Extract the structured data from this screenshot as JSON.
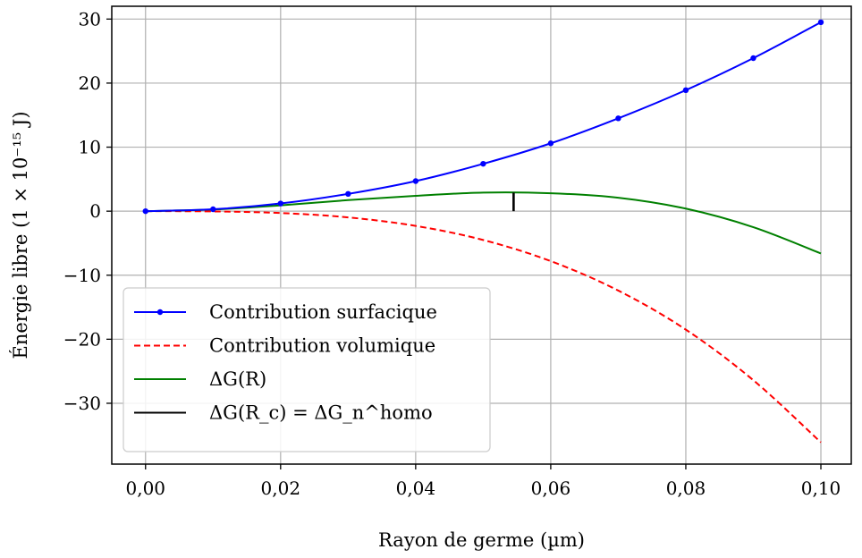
{
  "chart_data": {
    "type": "line",
    "xlabel": "Rayon de germe (µm)",
    "ylabel": "Énergie libre (1 × 10⁻¹⁵ J)",
    "xlim": [
      -0.005,
      0.1045
    ],
    "ylim": [
      -39.5,
      32
    ],
    "grid": true,
    "legend_placement": "lower-left",
    "x_ticks": [
      0.0,
      0.02,
      0.04,
      0.06,
      0.08,
      0.1
    ],
    "x_tick_labels": [
      "0,00",
      "0,02",
      "0,04",
      "0,06",
      "0,08",
      "0,10"
    ],
    "y_ticks": [
      -30,
      -20,
      -10,
      0,
      10,
      20,
      30
    ],
    "y_tick_labels": [
      "−30",
      "−20",
      "−10",
      "0",
      "10",
      "20",
      "30"
    ],
    "series": [
      {
        "name": "Contribution surfacique",
        "color": "#0000ff",
        "style": "solid-with-markers",
        "x": [
          0.0,
          0.01,
          0.02,
          0.03,
          0.04,
          0.05,
          0.06,
          0.07,
          0.08,
          0.09,
          0.1
        ],
        "y": [
          0.0,
          0.3,
          1.2,
          2.7,
          4.7,
          7.4,
          10.6,
          14.5,
          18.9,
          23.9,
          29.5
        ]
      },
      {
        "name": "Contribution volumique",
        "color": "#ff0000",
        "style": "dashed",
        "x": [
          0.0,
          0.01,
          0.02,
          0.03,
          0.04,
          0.05,
          0.06,
          0.07,
          0.08,
          0.09,
          0.1
        ],
        "y": [
          0.0,
          -0.04,
          -0.29,
          -0.97,
          -2.3,
          -4.5,
          -7.8,
          -12.4,
          -18.5,
          -26.4,
          -36.1
        ]
      },
      {
        "name": "ΔG(R)",
        "color": "#008000",
        "style": "solid",
        "x": [
          0.0,
          0.01,
          0.02,
          0.03,
          0.04,
          0.05,
          0.06,
          0.07,
          0.08,
          0.09,
          0.1
        ],
        "y": [
          0.0,
          0.26,
          0.91,
          1.73,
          2.4,
          2.9,
          2.8,
          2.1,
          0.4,
          -2.5,
          -6.6
        ]
      },
      {
        "name": "ΔG(R_c) = ΔG_n^homo",
        "color": "#000000",
        "style": "vertical-segment",
        "x": [
          0.0545,
          0.0545
        ],
        "y": [
          0.0,
          2.9
        ]
      }
    ]
  }
}
